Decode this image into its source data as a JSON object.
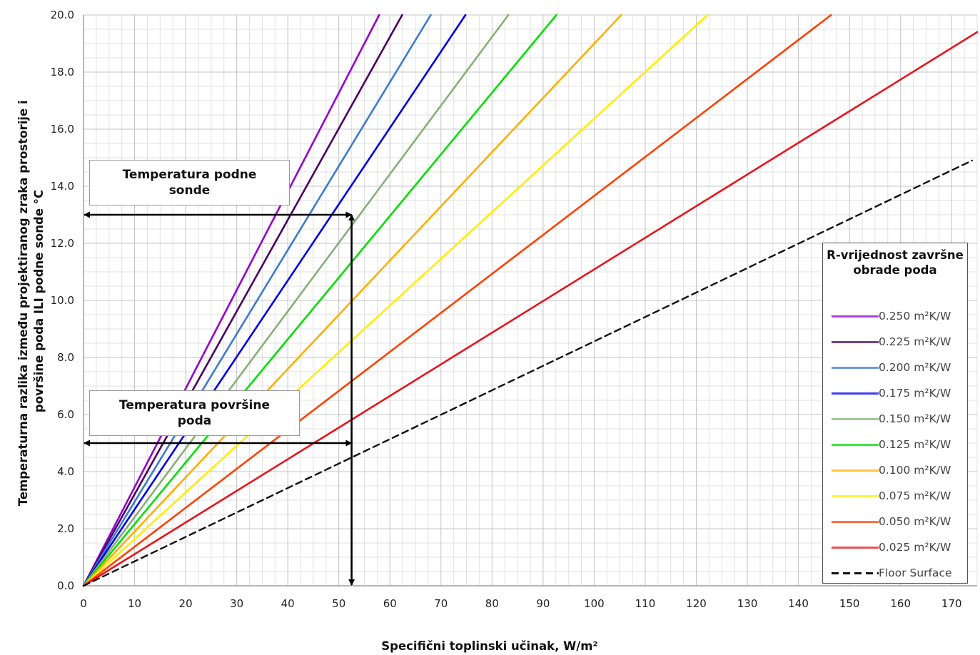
{
  "chart_data": {
    "type": "line",
    "xlabel": "Specifični toplinski učinak, W/m²",
    "ylabel_lines": [
      "Temperaturna razlika između projektiranog zraka prostorije i",
      "površine poda ILI podne sonde °C"
    ],
    "xlim": [
      0,
      175
    ],
    "ylim": [
      0,
      20
    ],
    "x_ticks": [
      0,
      10,
      20,
      30,
      40,
      50,
      60,
      70,
      80,
      90,
      100,
      110,
      120,
      130,
      140,
      150,
      160,
      170
    ],
    "y_ticks": [
      "0.0",
      "2.0",
      "4.0",
      "6.0",
      "8.0",
      "10.0",
      "12.0",
      "14.0",
      "16.0",
      "18.0",
      "20.0"
    ],
    "grid": true,
    "legend": {
      "title": "R-vrijednost završne obrade poda",
      "position": "right"
    },
    "series": [
      {
        "name": "0.250 m²K/W",
        "color": "#9400d3",
        "dash": false,
        "x": [
          0,
          57.9
        ],
        "y": [
          0,
          20
        ]
      },
      {
        "name": "0.225 m²K/W",
        "color": "#4b0060",
        "dash": false,
        "x": [
          0,
          62.4
        ],
        "y": [
          0,
          20
        ]
      },
      {
        "name": "0.200 m²K/W",
        "color": "#3d7ad0",
        "dash": false,
        "x": [
          0,
          68.0
        ],
        "y": [
          0,
          20
        ]
      },
      {
        "name": "0.175 m²K/W",
        "color": "#0000e8",
        "dash": false,
        "x": [
          0,
          74.8
        ],
        "y": [
          0,
          20
        ]
      },
      {
        "name": "0.150 m²K/W",
        "color": "#86b078",
        "dash": false,
        "x": [
          0,
          83.2
        ],
        "y": [
          0,
          20
        ]
      },
      {
        "name": "0.125 m²K/W",
        "color": "#00e000",
        "dash": false,
        "x": [
          0,
          92.6
        ],
        "y": [
          0,
          20
        ]
      },
      {
        "name": "0.100 m²K/W",
        "color": "#ffae00",
        "dash": false,
        "x": [
          0,
          105.3
        ],
        "y": [
          0,
          20
        ]
      },
      {
        "name": "0.075 m²K/W",
        "color": "#ffee00",
        "dash": false,
        "x": [
          0,
          122.2
        ],
        "y": [
          0,
          20
        ]
      },
      {
        "name": "0.050 m²K/W",
        "color": "#ff4000",
        "dash": false,
        "x": [
          0,
          146.4
        ],
        "y": [
          0,
          20
        ]
      },
      {
        "name": "0.025 m²K/W",
        "color": "#e8141c",
        "dash": false,
        "x": [
          0,
          175
        ],
        "y": [
          0,
          19.4
        ]
      },
      {
        "name": "Floor Surface",
        "color": "#111111",
        "dash": true,
        "x": [
          0,
          174
        ],
        "y": [
          0,
          14.9
        ]
      }
    ],
    "annotations": [
      {
        "text": "Temperatura podne sonde",
        "arrow_y": 13.0,
        "arrow_x_end": 52.5
      },
      {
        "text": "Temperatura površine poda",
        "arrow_y": 5.0,
        "arrow_x_end": 52.5
      }
    ],
    "vertical_arrow": {
      "x": 52.5,
      "y_from": 13.0,
      "y_to": 0
    }
  }
}
